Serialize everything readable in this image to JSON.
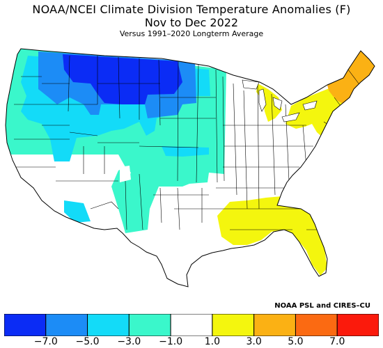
{
  "title": {
    "line1": "NOAA/NCEI Climate Division Temperature Anomalies (F)",
    "line2": "Nov to Dec 2022",
    "line3": "Versus 1991–2020 Longterm Average"
  },
  "credit": "NOAA PSL and CIRES–CU",
  "legend": {
    "bins": [
      {
        "color": "#0b2cf5"
      },
      {
        "color": "#1c8cf6"
      },
      {
        "color": "#13dbf8"
      },
      {
        "color": "#3af7cb"
      },
      {
        "color": "#ffffff"
      },
      {
        "color": "#f4f60e"
      },
      {
        "color": "#fbb114"
      },
      {
        "color": "#fb6a12"
      },
      {
        "color": "#fb1a0c"
      }
    ],
    "tick_labels": [
      "−7.0",
      "−5.0",
      "−3.0",
      "−1.0",
      "1.0",
      "3.0",
      "5.0",
      "7.0"
    ]
  },
  "map_regions": [
    {
      "name": "Northwest coast",
      "anomaly_bin": "-3.0 to -1.0",
      "color": "#3af7cb"
    },
    {
      "name": "Northern Rockies / Montana",
      "anomaly_bin": "-7.0 to -5.0",
      "color": "#1c8cf6"
    },
    {
      "name": "Northern Plains core",
      "anomaly_bin": "below -7.0",
      "color": "#0b2cf5"
    },
    {
      "name": "Interior West / Great Basin",
      "anomaly_bin": "-5.0 to -3.0",
      "color": "#13dbf8"
    },
    {
      "name": "Southwest / Plains",
      "anomaly_bin": "-3.0 to -1.0",
      "color": "#3af7cb"
    },
    {
      "name": "Central / Eastern US",
      "anomaly_bin": "-1.0 to 1.0",
      "color": "#ffffff"
    },
    {
      "name": "Gulf Coast / Florida",
      "anomaly_bin": "1.0 to 3.0",
      "color": "#f4f60e"
    },
    {
      "name": "Great Lakes",
      "anomaly_bin": "1.0 to 3.0",
      "color": "#f4f60e"
    },
    {
      "name": "Northeast",
      "anomaly_bin": "1.0 to 3.0",
      "color": "#f4f60e"
    },
    {
      "name": "Northern New England",
      "anomaly_bin": "3.0 to 5.0",
      "color": "#fbb114"
    }
  ]
}
